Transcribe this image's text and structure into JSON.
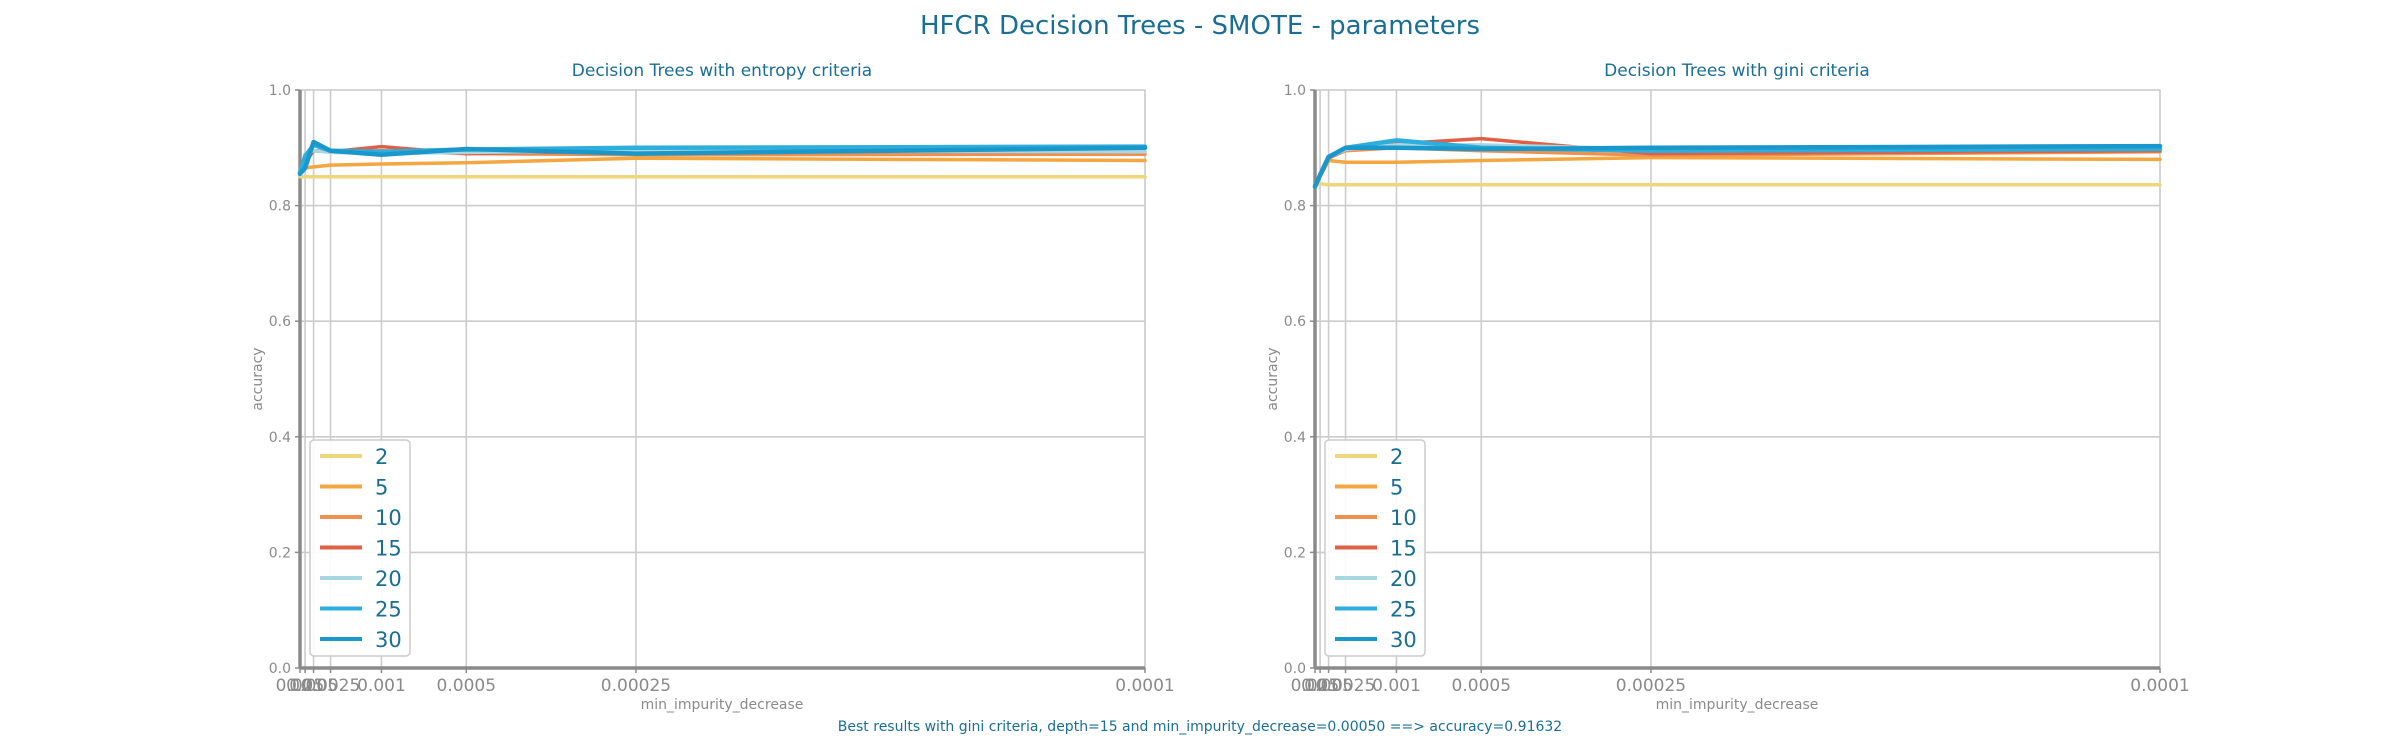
{
  "title": "HFCR Decision Trees - SMOTE - parameters",
  "footer": "Best results with gini criteria, depth=15 and min_impurity_decrease=0.00050 ==> accuracy=0.91632",
  "colors": {
    "text_accent": "#1a6e94",
    "axis": "#8a8a8a",
    "grid": "#cccccc",
    "series": [
      "#f0d67a",
      "#f4a640",
      "#f0904f",
      "#df6044",
      "#a9d6e3",
      "#2eaedd",
      "#1a98cb"
    ]
  },
  "chart_data": [
    {
      "type": "line",
      "title": "Decision Trees with entropy criteria",
      "xlabel": "min_impurity_decrease",
      "ylabel": "accuracy",
      "ylim": [
        0,
        1
      ],
      "x_scale": "reciprocal",
      "x": [
        0.025,
        0.01,
        0.005,
        0.0025,
        0.001,
        0.0005,
        0.00025,
        0.0001
      ],
      "x_tick_labels": [
        "0.025",
        "0.01",
        "0.005",
        "0.0025",
        "0.001",
        "0.0005",
        "0.00025",
        "0.0001"
      ],
      "y_ticks": [
        0.0,
        0.2,
        0.4,
        0.6,
        0.8,
        1.0
      ],
      "grid": true,
      "legend_position": "lower-left",
      "series": [
        {
          "name": "2",
          "values": [
            0.85,
            0.85,
            0.85,
            0.85,
            0.85,
            0.85,
            0.85,
            0.85
          ]
        },
        {
          "name": "5",
          "values": [
            0.855,
            0.865,
            0.867,
            0.87,
            0.872,
            0.874,
            0.882,
            0.878
          ]
        },
        {
          "name": "10",
          "values": [
            0.855,
            0.875,
            0.895,
            0.893,
            0.895,
            0.89,
            0.888,
            0.889
          ]
        },
        {
          "name": "15",
          "values": [
            0.855,
            0.875,
            0.895,
            0.893,
            0.902,
            0.89,
            0.895,
            0.893
          ]
        },
        {
          "name": "20",
          "values": [
            0.853,
            0.89,
            0.895,
            0.892,
            0.89,
            0.892,
            0.895,
            0.893
          ]
        },
        {
          "name": "25",
          "values": [
            0.857,
            0.885,
            0.905,
            0.895,
            0.893,
            0.897,
            0.9,
            0.902
          ]
        },
        {
          "name": "30",
          "values": [
            0.855,
            0.865,
            0.91,
            0.895,
            0.888,
            0.898,
            0.89,
            0.9
          ]
        }
      ]
    },
    {
      "type": "line",
      "title": "Decision Trees with gini criteria",
      "xlabel": "min_impurity_decrease",
      "ylabel": "accuracy",
      "ylim": [
        0,
        1
      ],
      "x_scale": "reciprocal",
      "x": [
        0.025,
        0.01,
        0.005,
        0.0025,
        0.001,
        0.0005,
        0.00025,
        0.0001
      ],
      "x_tick_labels": [
        "0.025",
        "0.01",
        "0.005",
        "0.0025",
        "0.001",
        "0.0005",
        "0.00025",
        "0.0001"
      ],
      "y_ticks": [
        0.0,
        0.2,
        0.4,
        0.6,
        0.8,
        1.0
      ],
      "grid": true,
      "legend_position": "lower-left",
      "series": [
        {
          "name": "2",
          "values": [
            0.835,
            0.838,
            0.836,
            0.836,
            0.836,
            0.836,
            0.836,
            0.836
          ]
        },
        {
          "name": "5",
          "values": [
            0.837,
            0.85,
            0.878,
            0.875,
            0.875,
            0.878,
            0.883,
            0.88
          ]
        },
        {
          "name": "10",
          "values": [
            0.835,
            0.852,
            0.882,
            0.895,
            0.9,
            0.895,
            0.887,
            0.893
          ]
        },
        {
          "name": "15",
          "values": [
            0.835,
            0.852,
            0.882,
            0.897,
            0.907,
            0.916,
            0.89,
            0.895
          ]
        },
        {
          "name": "20",
          "values": [
            0.835,
            0.853,
            0.883,
            0.897,
            0.905,
            0.905,
            0.898,
            0.9
          ]
        },
        {
          "name": "25",
          "values": [
            0.833,
            0.853,
            0.884,
            0.9,
            0.913,
            0.9,
            0.895,
            0.898
          ]
        },
        {
          "name": "30",
          "values": [
            0.833,
            0.853,
            0.884,
            0.9,
            0.9,
            0.898,
            0.9,
            0.903
          ]
        }
      ]
    }
  ]
}
